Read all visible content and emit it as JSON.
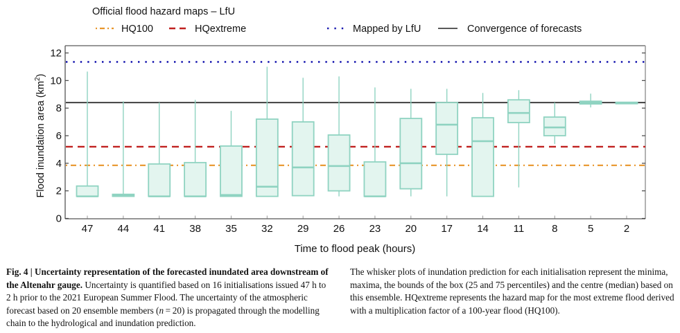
{
  "chart_data": {
    "type": "boxplot",
    "legend_title": "Official flood hazard maps – LfU",
    "legend": [
      {
        "label": "HQ100",
        "style": "dash-dot",
        "color": "#e8952a",
        "value": 3.85
      },
      {
        "label": "HQextreme",
        "style": "dashed",
        "color": "#c0201f",
        "value": 5.2
      },
      {
        "label": "Mapped by LfU",
        "style": "dotted",
        "color": "#1a1ab0",
        "value": 11.35
      },
      {
        "label": "Convergence of forecasts",
        "style": "solid",
        "color": "#333333",
        "value": 8.4
      }
    ],
    "legend_position": "top",
    "xlabel": "Time to flood peak (hours)",
    "ylabel": "Flood inundation area (km²)",
    "ylabel_main": "Flood inundation area (km",
    "ylabel_sup": "2",
    "ylabel_close": ")",
    "ylim": [
      0,
      12.5
    ],
    "yticks": [
      0,
      2,
      4,
      6,
      8,
      10,
      12
    ],
    "ytick_labels": [
      "0",
      "2",
      "4",
      "6",
      "8",
      "10",
      "12"
    ],
    "categories": [
      "47",
      "44",
      "41",
      "38",
      "35",
      "32",
      "29",
      "26",
      "23",
      "20",
      "17",
      "14",
      "11",
      "8",
      "5",
      "2"
    ],
    "boxes": [
      {
        "min": 1.6,
        "q1": 1.6,
        "median": 1.6,
        "q3": 2.35,
        "max": 10.65
      },
      {
        "min": 1.6,
        "q1": 1.6,
        "median": 1.65,
        "q3": 1.75,
        "max": 8.5
      },
      {
        "min": 1.6,
        "q1": 1.6,
        "median": 1.6,
        "q3": 3.95,
        "max": 8.4
      },
      {
        "min": 1.6,
        "q1": 1.6,
        "median": 1.6,
        "q3": 4.05,
        "max": 8.6
      },
      {
        "min": 1.6,
        "q1": 1.6,
        "median": 1.7,
        "q3": 5.25,
        "max": 7.8
      },
      {
        "min": 1.6,
        "q1": 1.6,
        "median": 2.3,
        "q3": 7.2,
        "max": 11.0
      },
      {
        "min": 1.65,
        "q1": 1.65,
        "median": 3.7,
        "q3": 7.0,
        "max": 10.2
      },
      {
        "min": 1.6,
        "q1": 2.0,
        "median": 3.8,
        "q3": 6.05,
        "max": 10.3
      },
      {
        "min": 1.6,
        "q1": 1.6,
        "median": 1.6,
        "q3": 4.1,
        "max": 9.5
      },
      {
        "min": 1.6,
        "q1": 2.15,
        "median": 4.0,
        "q3": 7.25,
        "max": 9.4
      },
      {
        "min": 1.6,
        "q1": 4.65,
        "median": 6.8,
        "q3": 8.4,
        "max": 9.4
      },
      {
        "min": 1.6,
        "q1": 1.6,
        "median": 5.6,
        "q3": 7.3,
        "max": 9.1
      },
      {
        "min": 2.25,
        "q1": 6.95,
        "median": 7.65,
        "q3": 8.6,
        "max": 9.3
      },
      {
        "min": 5.4,
        "q1": 6.0,
        "median": 6.6,
        "q3": 7.35,
        "max": 8.4
      },
      {
        "min": 8.05,
        "q1": 8.3,
        "median": 8.4,
        "q3": 8.5,
        "max": 9.05
      },
      {
        "min": 8.4,
        "q1": 8.38,
        "median": 8.4,
        "q3": 8.42,
        "max": 8.4
      }
    ],
    "box_color": "#8fd3c1",
    "box_fill": "#e3f5ef",
    "grid": false
  },
  "caption": {
    "fig_label": "Fig. 4 | ",
    "title": "Uncertainty representation of the forecasted inundated area downstream of the Altenahr gauge.",
    "left_text": " Uncertainty is quantified based on 16 initialisations issued 47 h to 2 h prior to the 2021 European Summer Flood. The uncertainty of the atmospheric forecast  based on 20 ensemble members (",
    "n_italic": "n",
    "left_text_end": " = 20) is propagated through the modelling chain to the hydrological and inundation prediction.",
    "right_text": "The whisker plots of inundation prediction for each initialisation represent the minima, maxima, the bounds of the box (25 and 75 percentiles) and the centre (median) based on this ensemble. HQextreme represents the hazard map for the most extreme flood derived with a multiplication factor of a 100-year flood (HQ100)."
  }
}
